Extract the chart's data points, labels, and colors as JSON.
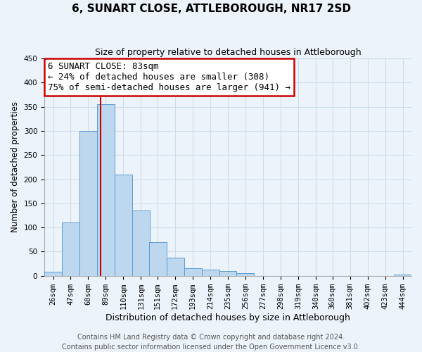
{
  "title": "6, SUNART CLOSE, ATTLEBOROUGH, NR17 2SD",
  "subtitle": "Size of property relative to detached houses in Attleborough",
  "xlabel": "Distribution of detached houses by size in Attleborough",
  "ylabel": "Number of detached properties",
  "footer_line1": "Contains HM Land Registry data © Crown copyright and database right 2024.",
  "footer_line2": "Contains public sector information licensed under the Open Government Licence v3.0.",
  "bin_labels": [
    "26sqm",
    "47sqm",
    "68sqm",
    "89sqm",
    "110sqm",
    "131sqm",
    "151sqm",
    "172sqm",
    "193sqm",
    "214sqm",
    "235sqm",
    "256sqm",
    "277sqm",
    "298sqm",
    "319sqm",
    "340sqm",
    "360sqm",
    "381sqm",
    "402sqm",
    "423sqm",
    "444sqm"
  ],
  "bar_heights": [
    8,
    110,
    300,
    355,
    210,
    135,
    70,
    37,
    15,
    13,
    10,
    5,
    0,
    0,
    0,
    0,
    0,
    0,
    0,
    0,
    2
  ],
  "bar_color": "#bdd7ee",
  "bar_edge_color": "#5b9bd5",
  "property_line_x": 83,
  "property_line_color": "#cc0000",
  "annotation_title": "6 SUNART CLOSE: 83sqm",
  "annotation_line1": "← 24% of detached houses are smaller (308)",
  "annotation_line2": "75% of semi-detached houses are larger (941) →",
  "annotation_box_color": "#ffffff",
  "annotation_box_edge": "#cc0000",
  "ylim": [
    0,
    450
  ],
  "bin_width": 21,
  "grid_color": "#ccdded",
  "background_color": "#edf3fa",
  "title_fontsize": 11,
  "subtitle_fontsize": 9,
  "tick_fontsize": 7.5,
  "ylabel_fontsize": 8.5,
  "xlabel_fontsize": 9,
  "footer_fontsize": 7,
  "annot_fontsize": 9
}
